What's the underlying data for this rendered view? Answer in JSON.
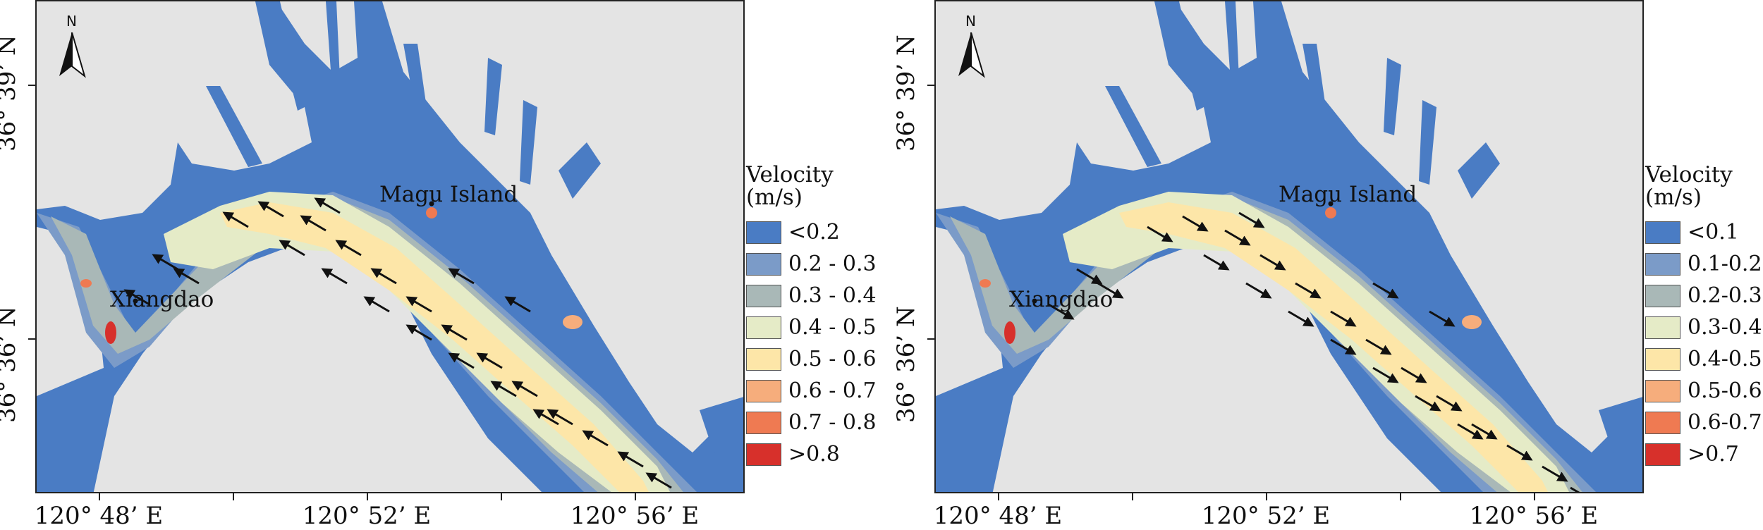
{
  "panels": [
    {
      "legend_title_1": "Velocity",
      "legend_title_2": "(m/s)",
      "legend": [
        {
          "label": "<0.2",
          "color": "#4a7cc4"
        },
        {
          "label": "0.2 - 0.3",
          "color": "#7b9bc8"
        },
        {
          "label": "0.3 - 0.4",
          "color": "#a9b8b7"
        },
        {
          "label": "0.4 - 0.5",
          "color": "#e5ebc7"
        },
        {
          "label": "0.5 - 0.6",
          "color": "#fde6a8"
        },
        {
          "label": "0.6 - 0.7",
          "color": "#f6ad7c"
        },
        {
          "label": "0.7 - 0.8",
          "color": "#ef7a52"
        },
        {
          "label": ">0.8",
          "color": "#d7302b"
        }
      ],
      "flow_direction": "northwest (flood toward inner bay)",
      "places": {
        "island": "Magu Island",
        "village": "Xiangdao"
      },
      "north_label": "N",
      "lon_ticks": [
        "120°  48’ E",
        "120°  52’ E",
        "120°  56’ E"
      ],
      "lat_ticks": [
        "36°  39’ N",
        "36°  36’ N"
      ]
    },
    {
      "legend_title_1": "Velocity",
      "legend_title_2": "(m/s)",
      "legend": [
        {
          "label": "<0.1",
          "color": "#4a7cc4"
        },
        {
          "label": "0.1-0.2",
          "color": "#7b9bc8"
        },
        {
          "label": "0.2-0.3",
          "color": "#a9b8b7"
        },
        {
          "label": "0.3-0.4",
          "color": "#e5ebc7"
        },
        {
          "label": "0.4-0.5",
          "color": "#fde6a8"
        },
        {
          "label": "0.5-0.6",
          "color": "#f6ad7c"
        },
        {
          "label": "0.6-0.7",
          "color": "#ef7a52"
        },
        {
          "label": ">0.7",
          "color": "#d7302b"
        }
      ],
      "flow_direction": "southeast (ebb toward sea)",
      "places": {
        "island": "Magu Island",
        "village": "Xiangdao"
      },
      "north_label": "N",
      "lon_ticks": [
        "120°  48’ E",
        "120°  52’ E",
        "120°  56’ E"
      ],
      "lat_ticks": [
        "36°  39’ N",
        "36°  36’ N"
      ]
    }
  ],
  "colors": {
    "land": "#e4e4e4",
    "water_slow": "#4a7cc4"
  }
}
